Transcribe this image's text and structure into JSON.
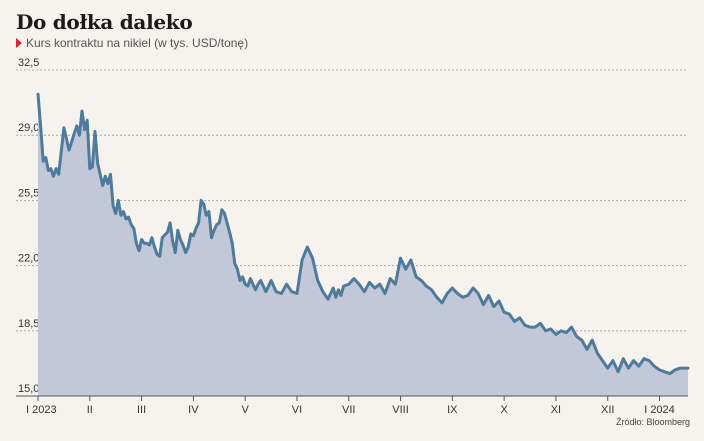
{
  "title": "Do dołka daleko",
  "subtitle": "Kurs kontraktu na nikiel (w tys. USD/tonę)",
  "source": "Źródło: Bloomberg",
  "colors": {
    "line": "#4e7a9c",
    "area": "#c3c8d8",
    "accent": "#d9262a",
    "grid": "#9a9a9a"
  },
  "chart_data": {
    "type": "area",
    "title": "Do dołka daleko",
    "subtitle": "Kurs kontraktu na nikiel (w tys. USD/tonę)",
    "ylim": [
      15.0,
      32.5
    ],
    "yticks": [
      "32,5",
      "29,0",
      "25,5",
      "22,0",
      "18,5",
      "15,0"
    ],
    "ytick_values": [
      32.5,
      29.0,
      25.5,
      22.0,
      18.5,
      15.0
    ],
    "xticks": [
      "I 2023",
      "II",
      "III",
      "IV",
      "V",
      "VI",
      "VII",
      "VIII",
      "IX",
      "X",
      "XI",
      "XII",
      "I 2024"
    ],
    "xtick_values": [
      0,
      1,
      2,
      3,
      4,
      5,
      6,
      7,
      8,
      9,
      10,
      11,
      12
    ],
    "grid": true,
    "x": [
      0,
      0.05,
      0.1,
      0.15,
      0.2,
      0.25,
      0.3,
      0.35,
      0.4,
      0.5,
      0.6,
      0.7,
      0.75,
      0.8,
      0.85,
      0.9,
      0.95,
      1.0,
      1.05,
      1.1,
      1.15,
      1.2,
      1.25,
      1.3,
      1.35,
      1.4,
      1.45,
      1.5,
      1.55,
      1.6,
      1.65,
      1.7,
      1.75,
      1.8,
      1.85,
      1.9,
      1.95,
      2.0,
      2.05,
      2.1,
      2.15,
      2.2,
      2.25,
      2.3,
      2.35,
      2.4,
      2.5,
      2.55,
      2.6,
      2.65,
      2.7,
      2.75,
      2.8,
      2.85,
      2.9,
      2.95,
      3.0,
      3.05,
      3.1,
      3.15,
      3.2,
      3.25,
      3.3,
      3.35,
      3.4,
      3.45,
      3.5,
      3.55,
      3.6,
      3.65,
      3.7,
      3.75,
      3.8,
      3.85,
      3.9,
      3.95,
      4.0,
      4.05,
      4.1,
      4.15,
      4.2,
      4.25,
      4.3,
      4.35,
      4.4,
      4.5,
      4.6,
      4.7,
      4.8,
      4.9,
      5.0,
      5.1,
      5.2,
      5.3,
      5.4,
      5.5,
      5.6,
      5.7,
      5.75,
      5.8,
      5.85,
      5.9,
      6.0,
      6.1,
      6.2,
      6.3,
      6.4,
      6.5,
      6.6,
      6.7,
      6.8,
      6.9,
      7.0,
      7.1,
      7.2,
      7.3,
      7.4,
      7.5,
      7.6,
      7.7,
      7.8,
      7.9,
      8.0,
      8.1,
      8.2,
      8.3,
      8.4,
      8.5,
      8.6,
      8.7,
      8.8,
      8.9,
      9.0,
      9.1,
      9.2,
      9.3,
      9.4,
      9.5,
      9.6,
      9.7,
      9.8,
      9.9,
      10.0,
      10.1,
      10.2,
      10.3,
      10.4,
      10.5,
      10.6,
      10.7,
      10.8,
      10.9,
      11.0,
      11.1,
      11.2,
      11.3,
      11.4,
      11.5,
      11.6,
      11.7,
      11.8,
      11.9,
      12.0,
      12.1,
      12.2,
      12.3,
      12.4,
      12.55
    ],
    "series": [
      {
        "values": [
          31.2,
          29.5,
          27.6,
          27.8,
          27.1,
          27.2,
          26.8,
          27.2,
          26.9,
          29.4,
          28.2,
          29.1,
          29.5,
          29.0,
          30.3,
          29.3,
          29.8,
          27.2,
          27.3,
          29.2,
          27.5,
          26.9,
          26.3,
          26.8,
          26.4,
          26.9,
          25.2,
          24.8,
          25.5,
          24.7,
          24.9,
          24.5,
          24.6,
          24.2,
          24.0,
          23.2,
          22.8,
          23.4,
          23.2,
          23.2,
          23.1,
          23.5,
          23.0,
          22.6,
          22.5,
          23.5,
          23.8,
          24.3,
          23.3,
          22.7,
          23.9,
          23.4,
          23.1,
          22.7,
          23.0,
          23.7,
          23.6,
          24.0,
          24.3,
          25.5,
          25.3,
          24.7,
          24.9,
          23.5,
          23.9,
          24.2,
          24.3,
          25.0,
          24.8,
          24.3,
          23.8,
          23.2,
          22.1,
          21.8,
          21.2,
          21.4,
          21.0,
          20.9,
          21.3,
          21.0,
          20.7,
          21.0,
          21.2,
          20.9,
          20.6,
          21.2,
          20.6,
          20.5,
          21.0,
          20.6,
          20.5,
          22.3,
          23.0,
          22.4,
          21.2,
          20.6,
          20.2,
          20.8,
          20.3,
          20.7,
          20.4,
          20.9,
          21.0,
          21.3,
          21.0,
          20.6,
          21.1,
          20.8,
          21.0,
          20.5,
          21.3,
          21.0,
          22.4,
          21.8,
          22.3,
          21.4,
          21.2,
          20.9,
          20.7,
          20.3,
          20.0,
          20.5,
          20.8,
          20.5,
          20.3,
          20.4,
          20.8,
          20.5,
          19.9,
          20.4,
          19.8,
          20.1,
          19.5,
          19.4,
          19.0,
          19.2,
          18.8,
          18.7,
          18.7,
          18.9,
          18.5,
          18.6,
          18.3,
          18.5,
          18.4,
          18.7,
          18.2,
          18.0,
          17.5,
          18.0,
          17.3,
          16.9,
          16.5,
          16.9,
          16.3,
          17.0,
          16.5,
          16.9,
          16.6,
          17.0,
          16.9,
          16.6,
          16.4,
          16.3,
          16.2,
          16.4,
          16.5,
          16.5
        ]
      }
    ]
  }
}
